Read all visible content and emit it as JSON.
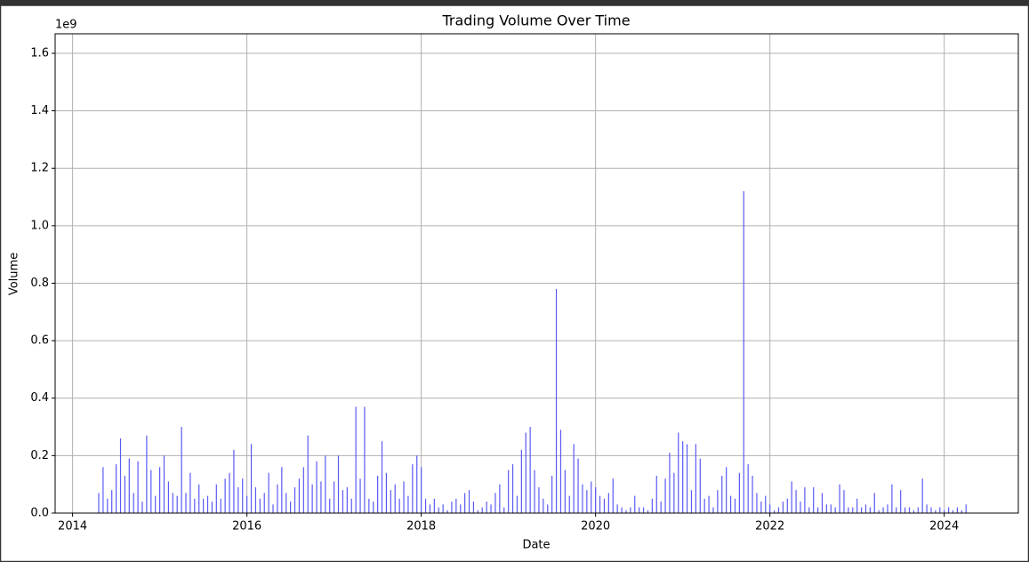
{
  "chart_data": {
    "type": "bar",
    "title": "Trading Volume Over Time",
    "xlabel": "Date",
    "ylabel": "Volume",
    "y_offset_label": "1e9",
    "color": "#5a5af5",
    "grid": true,
    "xlim": [
      2013.8,
      2024.85
    ],
    "ylim": [
      0,
      1.668
    ],
    "xticks": [
      2014,
      2016,
      2018,
      2020,
      2022,
      2024
    ],
    "yticks": [
      {
        "value": 0,
        "label": "0.0"
      },
      {
        "value": 0.2,
        "label": "0.2"
      },
      {
        "value": 0.4,
        "label": "0.4"
      },
      {
        "value": 0.6,
        "label": "0.6"
      },
      {
        "value": 0.8,
        "label": "0.8"
      },
      {
        "value": 1.0,
        "label": "1.0"
      },
      {
        "value": 1.2,
        "label": "1.2"
      },
      {
        "value": 1.4,
        "label": "1.4"
      },
      {
        "value": 1.6,
        "label": "1.6"
      }
    ],
    "x": [
      2014.3,
      2014.35,
      2014.4,
      2014.45,
      2014.5,
      2014.55,
      2014.6,
      2014.65,
      2014.7,
      2014.75,
      2014.8,
      2014.85,
      2014.9,
      2014.95,
      2015,
      2015.05,
      2015.1,
      2015.15,
      2015.2,
      2015.25,
      2015.3,
      2015.35,
      2015.4,
      2015.45,
      2015.5,
      2015.55,
      2015.6,
      2015.65,
      2015.7,
      2015.75,
      2015.8,
      2015.85,
      2015.9,
      2015.95,
      2016,
      2016.05,
      2016.1,
      2016.15,
      2016.2,
      2016.25,
      2016.3,
      2016.35,
      2016.4,
      2016.45,
      2016.5,
      2016.55,
      2016.6,
      2016.65,
      2016.7,
      2016.75,
      2016.8,
      2016.85,
      2016.9,
      2016.95,
      2017,
      2017.05,
      2017.1,
      2017.15,
      2017.2,
      2017.25,
      2017.3,
      2017.35,
      2017.4,
      2017.45,
      2017.5,
      2017.55,
      2017.6,
      2017.65,
      2017.7,
      2017.75,
      2017.8,
      2017.85,
      2017.9,
      2017.95,
      2018,
      2018.05,
      2018.1,
      2018.15,
      2018.2,
      2018.25,
      2018.3,
      2018.35,
      2018.4,
      2018.45,
      2018.5,
      2018.55,
      2018.6,
      2018.65,
      2018.7,
      2018.75,
      2018.8,
      2018.85,
      2018.9,
      2018.95,
      2019,
      2019.05,
      2019.1,
      2019.15,
      2019.2,
      2019.25,
      2019.3,
      2019.35,
      2019.4,
      2019.45,
      2019.5,
      2019.55,
      2019.6,
      2019.65,
      2019.7,
      2019.75,
      2019.8,
      2019.85,
      2019.9,
      2019.95,
      2020,
      2020.05,
      2020.1,
      2020.15,
      2020.2,
      2020.25,
      2020.3,
      2020.35,
      2020.4,
      2020.45,
      2020.5,
      2020.55,
      2020.6,
      2020.65,
      2020.7,
      2020.75,
      2020.8,
      2020.85,
      2020.9,
      2020.95,
      2021,
      2021.05,
      2021.1,
      2021.15,
      2021.2,
      2021.25,
      2021.3,
      2021.35,
      2021.4,
      2021.45,
      2021.5,
      2021.55,
      2021.6,
      2021.65,
      2021.7,
      2021.75,
      2021.8,
      2021.85,
      2021.9,
      2021.95,
      2022,
      2022.05,
      2022.1,
      2022.15,
      2022.2,
      2022.25,
      2022.3,
      2022.35,
      2022.4,
      2022.45,
      2022.5,
      2022.55,
      2022.6,
      2022.65,
      2022.7,
      2022.75,
      2022.8,
      2022.85,
      2022.9,
      2022.95,
      2023,
      2023.05,
      2023.1,
      2023.15,
      2023.2,
      2023.25,
      2023.3,
      2023.35,
      2023.4,
      2023.45,
      2023.5,
      2023.55,
      2023.6,
      2023.65,
      2023.7,
      2023.75,
      2023.8,
      2023.85,
      2023.9,
      2023.95,
      2024,
      2024.05,
      2024.1,
      2024.15,
      2024.2,
      2024.25
    ],
    "values": [
      0.07,
      0.16,
      0.05,
      0.08,
      0.17,
      0.26,
      0.13,
      0.19,
      0.07,
      0.18,
      0.04,
      0.27,
      0.15,
      0.06,
      0.16,
      0.2,
      0.11,
      0.07,
      0.06,
      0.3,
      0.07,
      0.14,
      0.05,
      0.1,
      0.05,
      0.06,
      0.04,
      0.1,
      0.05,
      0.12,
      0.14,
      0.22,
      0.09,
      0.12,
      0.06,
      0.24,
      0.09,
      0.05,
      0.07,
      0.14,
      0.03,
      0.1,
      0.16,
      0.07,
      0.04,
      0.09,
      0.12,
      0.16,
      0.27,
      0.1,
      0.18,
      0.11,
      0.2,
      0.05,
      0.11,
      0.2,
      0.08,
      0.09,
      0.05,
      0.37,
      0.12,
      0.37,
      0.05,
      0.04,
      0.13,
      0.25,
      0.14,
      0.08,
      0.1,
      0.05,
      0.11,
      0.06,
      0.17,
      0.2,
      0.16,
      0.05,
      0.03,
      0.05,
      0.02,
      0.03,
      0.01,
      0.04,
      0.05,
      0.03,
      0.07,
      0.08,
      0.04,
      0.01,
      0.02,
      0.04,
      0.03,
      0.07,
      0.1,
      0.02,
      0.15,
      0.17,
      0.06,
      0.22,
      0.28,
      0.3,
      0.15,
      0.09,
      0.05,
      0.03,
      0.13,
      0.78,
      0.29,
      0.15,
      0.06,
      0.24,
      0.19,
      0.1,
      0.08,
      0.11,
      0.09,
      0.06,
      0.05,
      0.07,
      0.12,
      0.03,
      0.02,
      0.01,
      0.02,
      0.06,
      0.02,
      0.02,
      0.01,
      0.05,
      0.13,
      0.04,
      0.12,
      0.21,
      0.14,
      0.28,
      0.25,
      0.24,
      0.08,
      0.24,
      0.19,
      0.05,
      0.06,
      0.02,
      0.08,
      0.13,
      0.16,
      0.06,
      0.05,
      0.14,
      1.12,
      0.17,
      0.13,
      0.07,
      0.04,
      0.06,
      0.03,
      0.01,
      0.02,
      0.04,
      0.05,
      0.11,
      0.08,
      0.04,
      0.09,
      0.02,
      0.09,
      0.02,
      0.07,
      0.03,
      0.03,
      0.02,
      0.1,
      0.08,
      0.02,
      0.02,
      0.05,
      0.02,
      0.03,
      0.02,
      0.07,
      0.01,
      0.02,
      0.03,
      0.1,
      0.02,
      0.08,
      0.02,
      0.02,
      0.01,
      0.02,
      0.12,
      0.03,
      0.02,
      0.01,
      0.02,
      0.01,
      0.02,
      0.01,
      0.02,
      0.01,
      0.03
    ]
  }
}
